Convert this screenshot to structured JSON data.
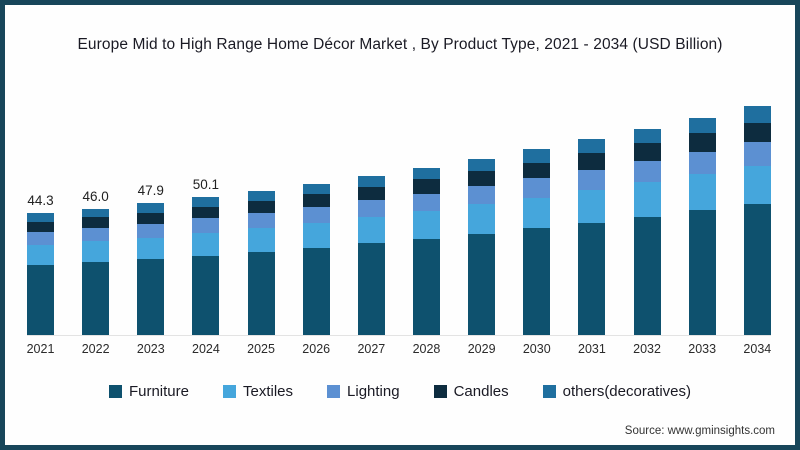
{
  "title": "Europe Mid to High Range Home Décor Market , By Product Type, 2021 - 2034 (USD Billion)",
  "source": "Source: www.gminsights.com",
  "colors": {
    "frame_border": "#17465a",
    "furniture": "#0e516e",
    "textiles": "#45a6dc",
    "lighting": "#5c90d2",
    "candles": "#0d2c3f",
    "others": "#1f6f9f"
  },
  "chart_data": {
    "type": "bar",
    "stacked": true,
    "title": "Europe Mid to High Range Home Décor Market , By Product Type, 2021 - 2034 (USD Billion)",
    "xlabel": "",
    "ylabel": "USD Billion",
    "grid": false,
    "legend_position": "bottom",
    "categories": [
      "2021",
      "2022",
      "2023",
      "2024",
      "2025",
      "2026",
      "2027",
      "2028",
      "2029",
      "2030",
      "2031",
      "2032",
      "2033",
      "2034"
    ],
    "series": [
      {
        "name": "Furniture",
        "color": "#0e516e",
        "values": [
          25.5,
          26.5,
          27.5,
          28.8,
          30.2,
          31.7,
          33.3,
          35.0,
          36.9,
          38.8,
          40.9,
          43.1,
          45.4,
          47.8
        ]
      },
      {
        "name": "Textiles",
        "color": "#45a6dc",
        "values": [
          7.3,
          7.6,
          7.9,
          8.3,
          8.7,
          9.1,
          9.6,
          10.0,
          10.6,
          11.1,
          11.7,
          12.4,
          13.0,
          13.7
        ]
      },
      {
        "name": "Lighting",
        "color": "#5c90d2",
        "values": [
          4.6,
          4.8,
          5.0,
          5.3,
          5.5,
          5.8,
          6.1,
          6.4,
          6.7,
          7.1,
          7.5,
          7.9,
          8.3,
          8.7
        ]
      },
      {
        "name": "Candles",
        "color": "#0d2c3f",
        "values": [
          3.8,
          3.9,
          4.1,
          4.2,
          4.4,
          4.7,
          4.9,
          5.2,
          5.4,
          5.7,
          6.0,
          6.3,
          6.7,
          7.0
        ]
      },
      {
        "name": "others(decoratives)",
        "color": "#1f6f9f",
        "values": [
          3.1,
          3.2,
          3.4,
          3.5,
          3.7,
          3.8,
          4.0,
          4.3,
          4.5,
          4.8,
          5.0,
          5.2,
          5.6,
          6.0
        ]
      }
    ],
    "totals": [
      44.3,
      46.0,
      47.9,
      50.1,
      52.5,
      55.1,
      57.9,
      60.9,
      64.1,
      67.5,
      71.1,
      74.9,
      79.0,
      83.2
    ],
    "bar_value_labels": [
      "44.3",
      "46.0",
      "47.9",
      "50.1",
      "",
      "",
      "",
      "",
      "",
      "",
      "",
      "",
      "",
      ""
    ]
  }
}
